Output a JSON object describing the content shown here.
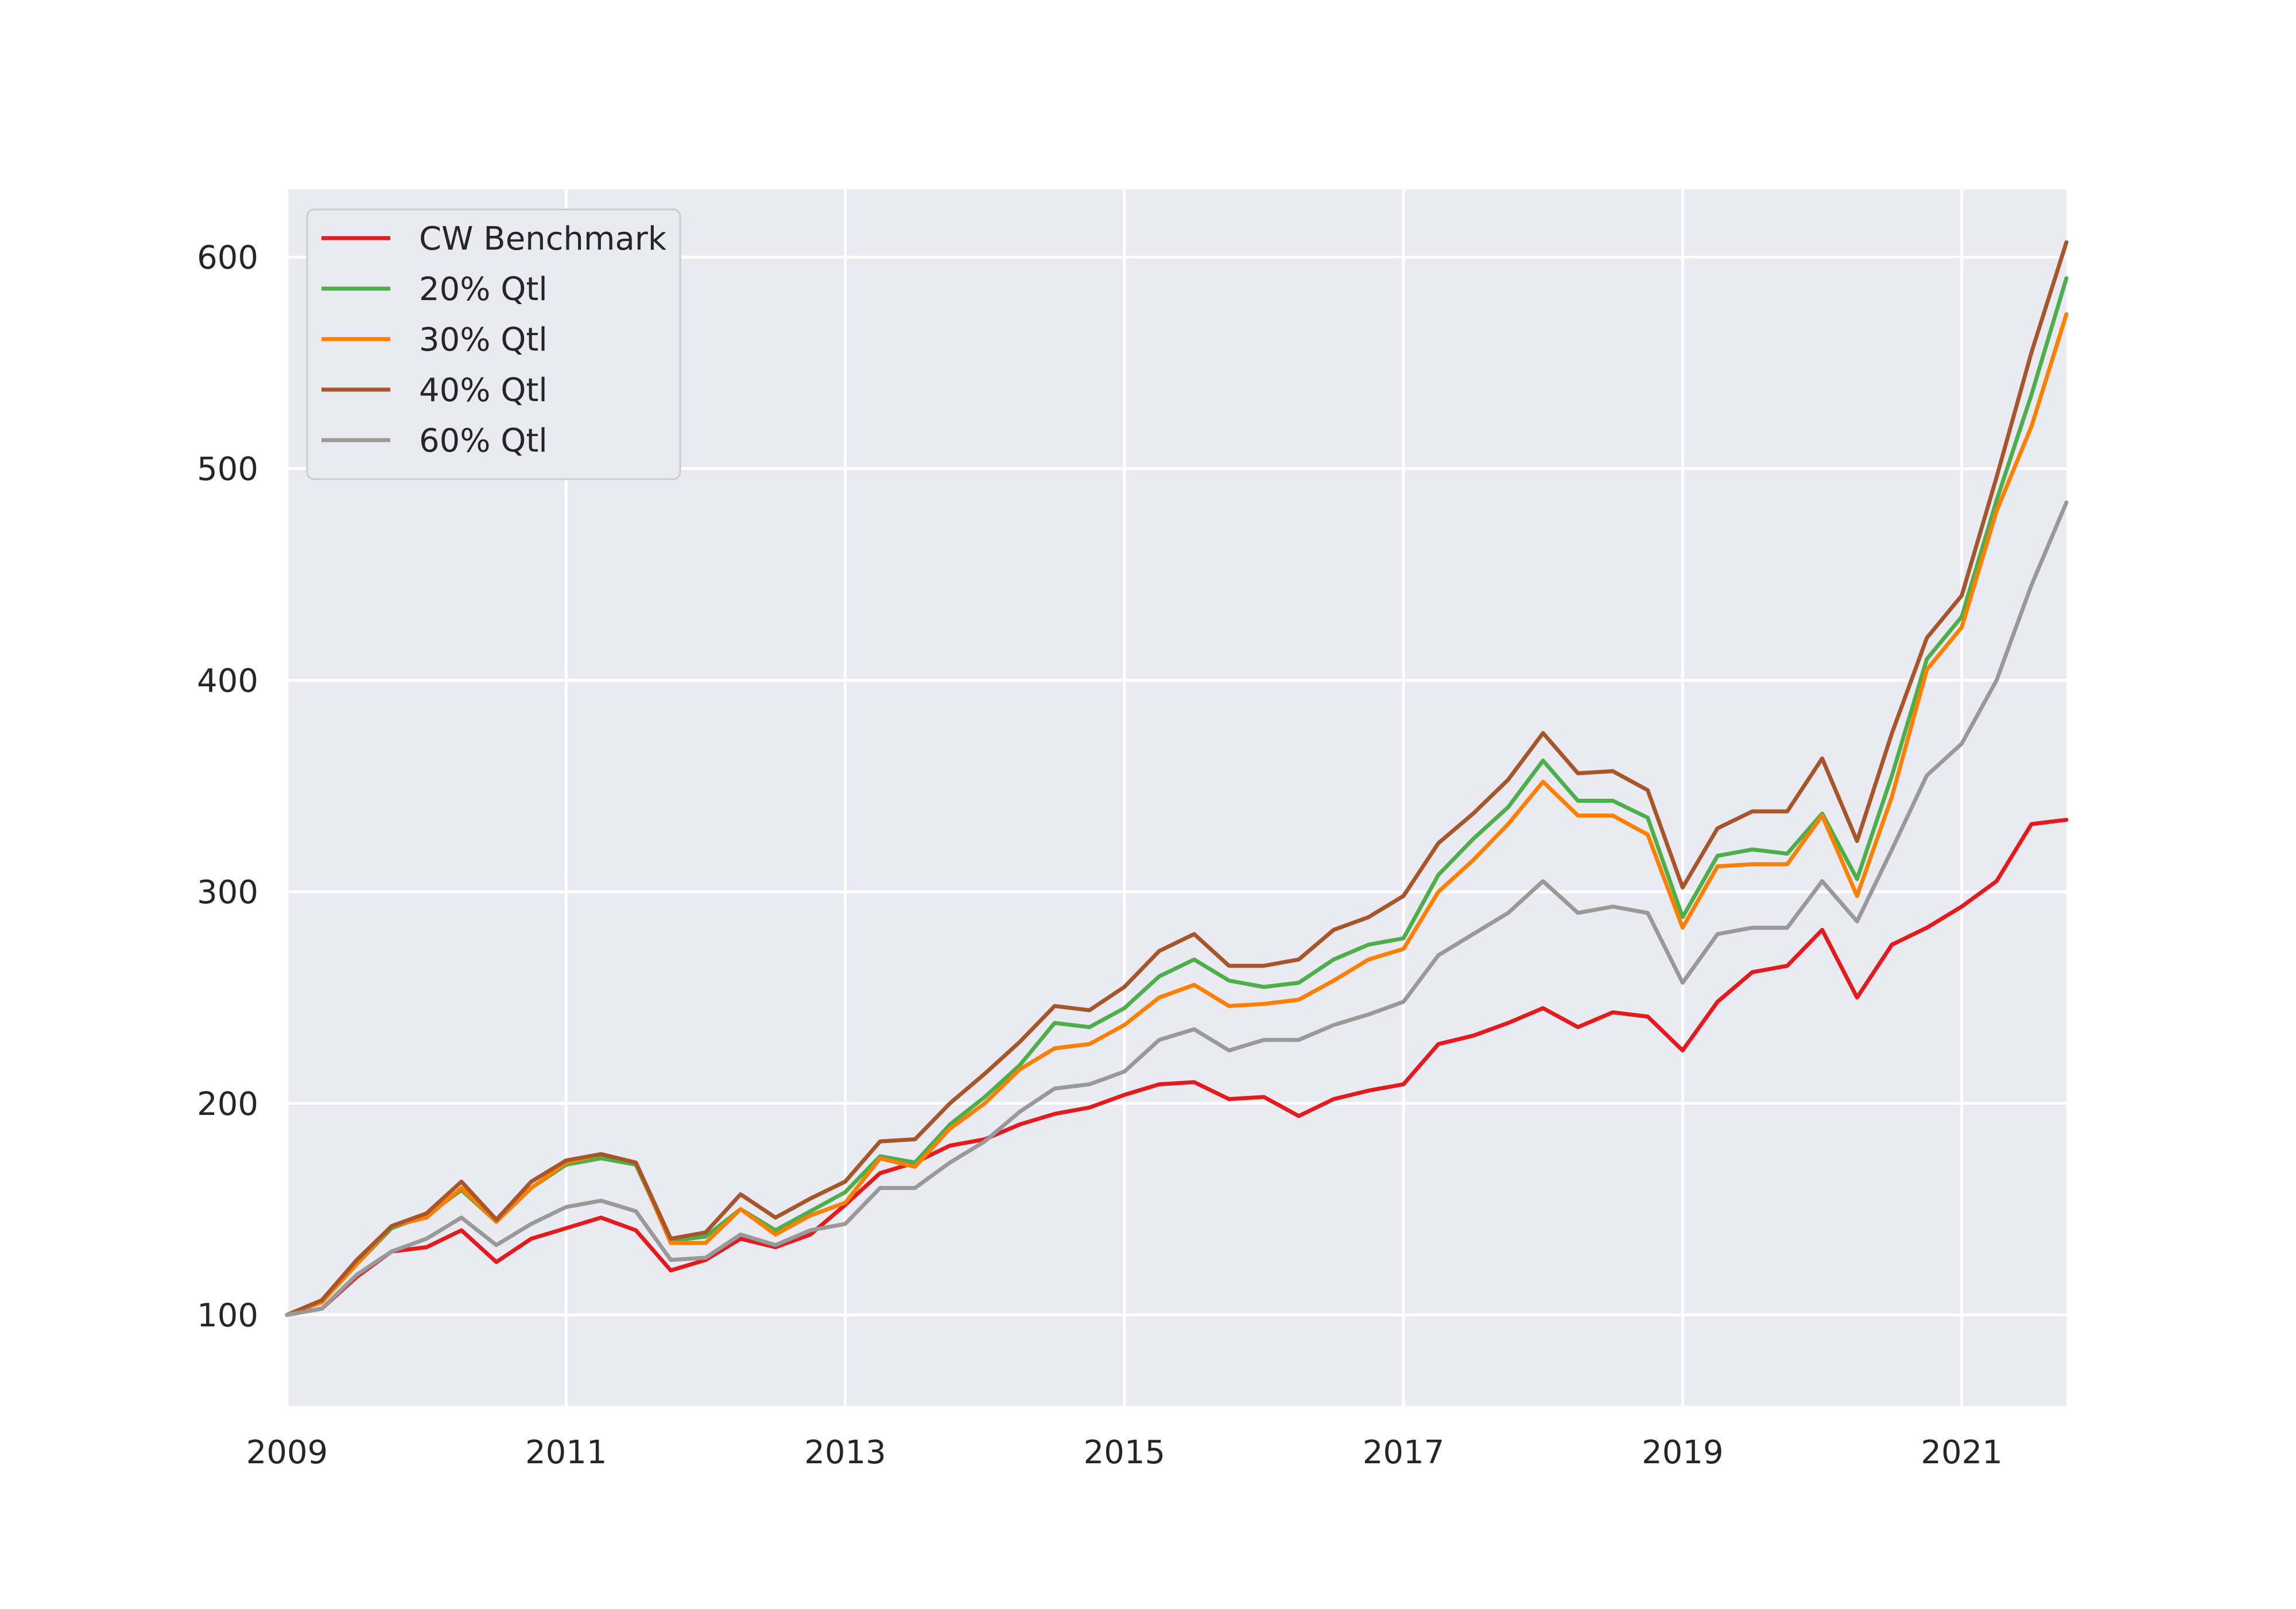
{
  "chart_data": {
    "type": "line",
    "title": "",
    "xlabel": "",
    "ylabel": "",
    "xlim": [
      "2009-01",
      "2021-10"
    ],
    "ylim": [
      57,
      632
    ],
    "xticks": [
      "2009",
      "2011",
      "2013",
      "2015",
      "2017",
      "2019",
      "2021"
    ],
    "yticks": [
      100,
      200,
      300,
      400,
      500,
      600
    ],
    "grid": true,
    "legend_position": "top-left",
    "x": [
      "2009-01",
      "2009-04",
      "2009-07",
      "2009-10",
      "2010-01",
      "2010-04",
      "2010-07",
      "2010-10",
      "2011-01",
      "2011-04",
      "2011-07",
      "2011-10",
      "2012-01",
      "2012-04",
      "2012-07",
      "2012-10",
      "2013-01",
      "2013-04",
      "2013-07",
      "2013-10",
      "2014-01",
      "2014-04",
      "2014-07",
      "2014-10",
      "2015-01",
      "2015-04",
      "2015-07",
      "2015-10",
      "2016-01",
      "2016-04",
      "2016-07",
      "2016-10",
      "2017-01",
      "2017-04",
      "2017-07",
      "2017-10",
      "2018-01",
      "2018-04",
      "2018-07",
      "2018-10",
      "2019-01",
      "2019-04",
      "2019-07",
      "2019-10",
      "2020-01",
      "2020-04",
      "2020-07",
      "2020-10",
      "2021-01",
      "2021-04",
      "2021-07",
      "2021-10"
    ],
    "series": [
      {
        "name": "CW Benchmark",
        "color": "#e41a1c",
        "values": [
          100,
          103,
          118,
          130,
          132,
          140,
          125,
          136,
          141,
          146,
          140,
          121,
          126,
          136,
          132,
          138,
          152,
          167,
          172,
          180,
          183,
          190,
          195,
          198,
          204,
          209,
          210,
          202,
          203,
          194,
          202,
          206,
          209,
          228,
          232,
          238,
          245,
          236,
          243,
          241,
          225,
          248,
          262,
          265,
          282,
          250,
          275,
          283,
          293,
          305,
          332,
          334
        ]
      },
      {
        "name": "20% Qtl",
        "color": "#4daf4a",
        "values": [
          100,
          106,
          124,
          141,
          147,
          159,
          144,
          160,
          171,
          174,
          171,
          135,
          137,
          150,
          140,
          149,
          158,
          175,
          172,
          190,
          203,
          218,
          238,
          236,
          245,
          260,
          268,
          258,
          255,
          257,
          268,
          275,
          278,
          308,
          325,
          340,
          362,
          343,
          343,
          335,
          288,
          317,
          320,
          318,
          337,
          306,
          355,
          410,
          430,
          485,
          535,
          590
        ]
      },
      {
        "name": "30% Qtl",
        "color": "#ff7f00",
        "values": [
          100,
          106,
          124,
          142,
          146,
          160,
          144,
          160,
          172,
          176,
          172,
          134,
          134,
          150,
          138,
          147,
          153,
          174,
          170,
          188,
          200,
          216,
          226,
          228,
          237,
          250,
          256,
          246,
          247,
          249,
          258,
          268,
          273,
          300,
          315,
          332,
          352,
          336,
          336,
          327,
          283,
          312,
          313,
          313,
          336,
          298,
          345,
          405,
          425,
          480,
          520,
          573
        ]
      },
      {
        "name": "40% Qtl",
        "color": "#a65628",
        "values": [
          100,
          107,
          126,
          142,
          148,
          163,
          145,
          163,
          173,
          176,
          172,
          136,
          139,
          157,
          146,
          155,
          163,
          182,
          183,
          200,
          214,
          229,
          246,
          244,
          255,
          272,
          280,
          265,
          265,
          268,
          282,
          288,
          298,
          323,
          337,
          353,
          375,
          356,
          357,
          348,
          302,
          330,
          338,
          338,
          363,
          324,
          375,
          420,
          440,
          496,
          555,
          607
        ]
      },
      {
        "name": "60% Qtl",
        "color": "#999999",
        "values": [
          100,
          103,
          119,
          130,
          136,
          146,
          133,
          143,
          151,
          154,
          149,
          126,
          127,
          138,
          133,
          140,
          143,
          160,
          160,
          172,
          182,
          196,
          207,
          209,
          215,
          230,
          235,
          225,
          230,
          230,
          237,
          242,
          248,
          270,
          280,
          290,
          305,
          290,
          293,
          290,
          257,
          280,
          283,
          283,
          305,
          286,
          320,
          355,
          370,
          400,
          445,
          484
        ]
      }
    ]
  }
}
